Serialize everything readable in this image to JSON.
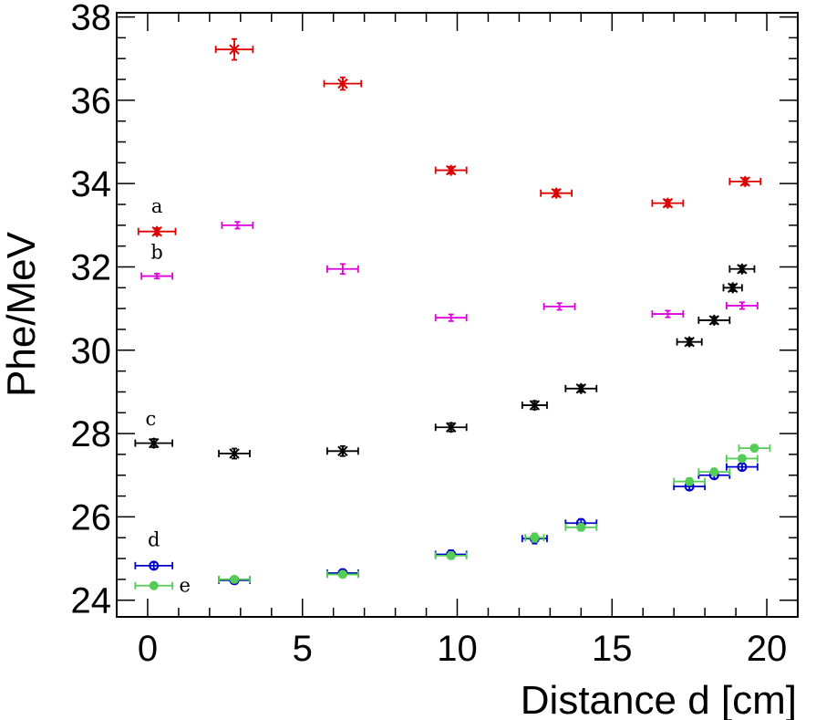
{
  "chart_data": {
    "type": "scatter",
    "title": "",
    "xlabel": "Distance d [cm]",
    "ylabel": "Phe/MeV",
    "xlim": [
      -1,
      21
    ],
    "ylim": [
      23.6,
      38.1
    ],
    "x_ticks": [
      0,
      5,
      10,
      15,
      20
    ],
    "y_ticks": [
      24,
      26,
      28,
      30,
      32,
      34,
      36,
      38
    ],
    "series": [
      {
        "name": "a",
        "color": "#dd0000",
        "marker": "star",
        "label_pos": [
          0.3,
          33.3
        ],
        "points": [
          {
            "x": 0.3,
            "y": 32.85,
            "xerr": 0.6,
            "yerr": 0.08
          },
          {
            "x": 2.8,
            "y": 37.22,
            "xerr": 0.6,
            "yerr": 0.25
          },
          {
            "x": 6.3,
            "y": 36.4,
            "xerr": 0.6,
            "yerr": 0.15
          },
          {
            "x": 9.8,
            "y": 34.32,
            "xerr": 0.5,
            "yerr": 0.08
          },
          {
            "x": 13.2,
            "y": 33.77,
            "xerr": 0.5,
            "yerr": 0.08
          },
          {
            "x": 16.8,
            "y": 33.53,
            "xerr": 0.5,
            "yerr": 0.08
          },
          {
            "x": 19.3,
            "y": 34.05,
            "xerr": 0.5,
            "yerr": 0.08
          }
        ]
      },
      {
        "name": "b",
        "color": "#dd00dd",
        "marker": "plus",
        "label_pos": [
          0.3,
          32.2
        ],
        "points": [
          {
            "x": 0.3,
            "y": 31.78,
            "xerr": 0.5,
            "yerr": 0.06
          },
          {
            "x": 2.9,
            "y": 33.0,
            "xerr": 0.5,
            "yerr": 0.08
          },
          {
            "x": 6.3,
            "y": 31.95,
            "xerr": 0.5,
            "yerr": 0.12
          },
          {
            "x": 9.8,
            "y": 30.78,
            "xerr": 0.5,
            "yerr": 0.08
          },
          {
            "x": 13.3,
            "y": 31.05,
            "xerr": 0.5,
            "yerr": 0.08
          },
          {
            "x": 16.8,
            "y": 30.87,
            "xerr": 0.5,
            "yerr": 0.08
          },
          {
            "x": 19.2,
            "y": 31.07,
            "xerr": 0.5,
            "yerr": 0.08
          }
        ]
      },
      {
        "name": "c",
        "color": "#000000",
        "marker": "star",
        "label_pos": [
          0.1,
          28.2
        ],
        "points": [
          {
            "x": 0.2,
            "y": 27.77,
            "xerr": 0.6,
            "yerr": 0.1
          },
          {
            "x": 2.8,
            "y": 27.52,
            "xerr": 0.5,
            "yerr": 0.12
          },
          {
            "x": 6.3,
            "y": 27.58,
            "xerr": 0.5,
            "yerr": 0.12
          },
          {
            "x": 9.8,
            "y": 28.15,
            "xerr": 0.5,
            "yerr": 0.1
          },
          {
            "x": 12.5,
            "y": 28.68,
            "xerr": 0.4,
            "yerr": 0.1
          },
          {
            "x": 14.0,
            "y": 29.08,
            "xerr": 0.5,
            "yerr": 0.08
          },
          {
            "x": 17.5,
            "y": 30.2,
            "xerr": 0.4,
            "yerr": 0.08
          },
          {
            "x": 18.3,
            "y": 30.72,
            "xerr": 0.5,
            "yerr": 0.08
          },
          {
            "x": 18.9,
            "y": 31.5,
            "xerr": 0.3,
            "yerr": 0.08
          },
          {
            "x": 19.2,
            "y": 31.95,
            "xerr": 0.4,
            "yerr": 0.08
          }
        ]
      },
      {
        "name": "d",
        "color": "#0000cc",
        "marker": "circle-open",
        "label_pos": [
          0.2,
          25.3
        ],
        "points": [
          {
            "x": 0.2,
            "y": 24.83,
            "xerr": 0.6,
            "yerr": 0.08
          },
          {
            "x": 2.8,
            "y": 24.48,
            "xerr": 0.5,
            "yerr": 0.08
          },
          {
            "x": 6.3,
            "y": 24.65,
            "xerr": 0.5,
            "yerr": 0.08
          },
          {
            "x": 9.8,
            "y": 25.1,
            "xerr": 0.5,
            "yerr": 0.1
          },
          {
            "x": 12.5,
            "y": 25.48,
            "xerr": 0.4,
            "yerr": 0.12
          },
          {
            "x": 14.0,
            "y": 25.85,
            "xerr": 0.5,
            "yerr": 0.1
          },
          {
            "x": 17.5,
            "y": 26.73,
            "xerr": 0.5,
            "yerr": 0.08
          },
          {
            "x": 18.3,
            "y": 27.0,
            "xerr": 0.5,
            "yerr": 0.08
          },
          {
            "x": 19.2,
            "y": 27.2,
            "xerr": 0.5,
            "yerr": 0.08
          }
        ]
      },
      {
        "name": "e",
        "color": "#55cc55",
        "marker": "circle-filled",
        "label_pos": [
          1.2,
          24.2
        ],
        "points": [
          {
            "x": 0.2,
            "y": 24.35,
            "xerr": 0.6,
            "yerr": 0.06
          },
          {
            "x": 2.8,
            "y": 24.5,
            "xerr": 0.5,
            "yerr": 0.06
          },
          {
            "x": 6.3,
            "y": 24.62,
            "xerr": 0.5,
            "yerr": 0.06
          },
          {
            "x": 9.8,
            "y": 25.07,
            "xerr": 0.5,
            "yerr": 0.08
          },
          {
            "x": 12.5,
            "y": 25.5,
            "xerr": 0.3,
            "yerr": 0.1
          },
          {
            "x": 14.0,
            "y": 25.75,
            "xerr": 0.5,
            "yerr": 0.08
          },
          {
            "x": 17.5,
            "y": 26.85,
            "xerr": 0.5,
            "yerr": 0.08
          },
          {
            "x": 18.3,
            "y": 27.08,
            "xerr": 0.5,
            "yerr": 0.08
          },
          {
            "x": 19.2,
            "y": 27.4,
            "xerr": 0.5,
            "yerr": 0.08
          },
          {
            "x": 19.6,
            "y": 27.65,
            "xerr": 0.5,
            "yerr": 0.08
          }
        ]
      }
    ]
  }
}
